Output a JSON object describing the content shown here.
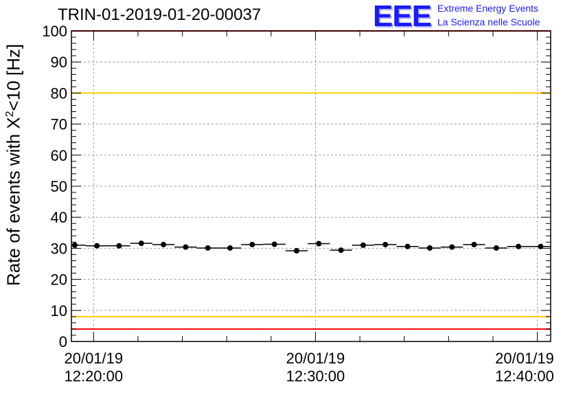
{
  "chart_data": {
    "type": "scatter",
    "title": "TRIN-01-2019-01-20-00037",
    "ylabel_main": "Rate of events with Χ",
    "ylabel_sup": "2",
    "ylabel_rest": "<10 [Hz]",
    "ylim": [
      0,
      100
    ],
    "yticks": [
      0,
      10,
      20,
      30,
      40,
      50,
      60,
      70,
      80,
      90,
      100
    ],
    "xlim_minutes": [
      -1.0,
      20.6
    ],
    "xticks": [
      {
        "minute": 0,
        "date": "20/01/19",
        "time": "12:20:00"
      },
      {
        "minute": 10,
        "date": "20/01/19",
        "time": "12:30:00"
      },
      {
        "minute": 20,
        "date": "20/01/19",
        "time": "12:40:00"
      }
    ],
    "x_bin_width_minutes": 1.0,
    "x_centers_minutes": [
      -0.85,
      0.15,
      1.15,
      2.15,
      3.15,
      4.15,
      5.15,
      6.15,
      7.15,
      8.15,
      9.15,
      10.15,
      11.15,
      12.15,
      13.15,
      14.15,
      15.15,
      16.15,
      17.15,
      18.15,
      19.15,
      20.15
    ],
    "values": [
      31.0,
      30.8,
      30.8,
      31.6,
      31.2,
      30.4,
      30.1,
      30.1,
      31.2,
      31.3,
      29.2,
      31.5,
      29.4,
      31.0,
      31.2,
      30.6,
      30.1,
      30.4,
      31.2,
      30.1,
      30.6,
      30.6
    ],
    "reference_lines": [
      {
        "value": 100,
        "color": "#ff0000"
      },
      {
        "value": 80,
        "color": "#ffcc00"
      },
      {
        "value": 8,
        "color": "#ffcc00"
      },
      {
        "value": 4,
        "color": "#ff0000"
      }
    ],
    "grid": true,
    "marker_color": "#000000"
  },
  "logo": {
    "text": "EEE",
    "line1": "Extreme Energy Events",
    "line2": "La Scienza nelle Scuole",
    "color": "#1a1aff"
  }
}
